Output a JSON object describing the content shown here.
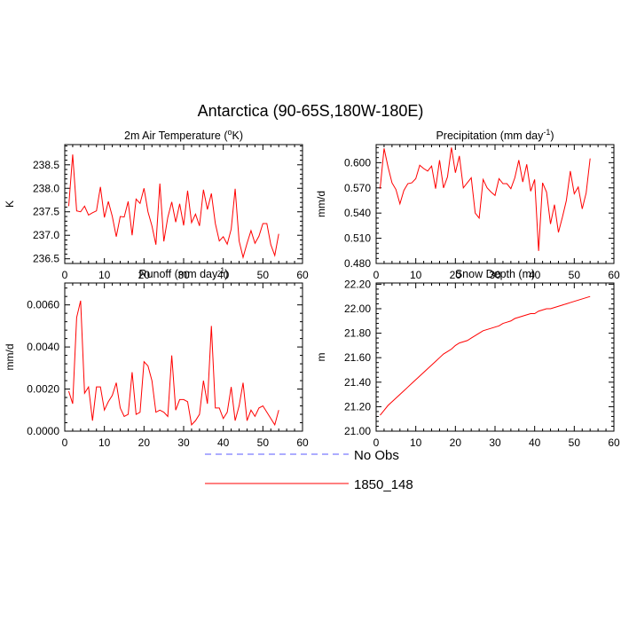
{
  "title": "Antarctica (90-65S,180W-180E)",
  "legend": {
    "items": [
      {
        "label": "No Obs",
        "color": "#5a5aff",
        "dashed": true
      },
      {
        "label": "1850_148",
        "color": "#ff0000",
        "dashed": false
      }
    ]
  },
  "chart_data": [
    {
      "type": "line",
      "title": "2m Air Temperature (°K)",
      "title_pre": "2m Air Temperature (",
      "title_sup": "o",
      "title_post": "K)",
      "ylabel": "K",
      "xlim": [
        0,
        60
      ],
      "ylim": [
        236.4,
        238.93
      ],
      "xticks": [
        "0",
        "10",
        "20",
        "30",
        "40",
        "50",
        "60"
      ],
      "yticks": [
        "236.5",
        "237.0",
        "237.5",
        "238.0",
        "238.5"
      ],
      "series": [
        {
          "color": "#ff0000",
          "x": [
            1,
            2,
            3,
            4,
            5,
            6,
            7,
            8,
            9,
            10,
            11,
            12,
            13,
            14,
            15,
            16,
            17,
            18,
            19,
            20,
            21,
            22,
            23,
            24,
            25,
            26,
            27,
            28,
            29,
            30,
            31,
            32,
            33,
            34,
            35,
            36,
            37,
            38,
            39,
            40,
            41,
            42,
            43,
            44,
            45,
            46,
            47,
            48,
            49,
            50,
            51,
            52,
            53,
            54
          ],
          "values": [
            237.62,
            238.72,
            237.52,
            237.5,
            237.62,
            237.43,
            237.48,
            237.52,
            238.03,
            237.38,
            237.72,
            237.4,
            236.97,
            237.4,
            237.39,
            237.72,
            237.0,
            237.77,
            237.68,
            238.0,
            237.5,
            237.2,
            236.8,
            238.1,
            236.87,
            237.38,
            237.71,
            237.28,
            237.67,
            237.21,
            237.95,
            237.27,
            237.45,
            237.2,
            237.97,
            237.55,
            237.89,
            237.25,
            236.88,
            236.97,
            236.81,
            237.13,
            237.99,
            236.88,
            236.53,
            236.83,
            237.1,
            236.83,
            236.98,
            237.25,
            237.25,
            236.8,
            236.57,
            237.03
          ]
        }
      ]
    },
    {
      "type": "line",
      "title": "Precipitation (mm day-1)",
      "title_pre": "Precipitation (mm day",
      "title_sup": "-1",
      "title_post": ")",
      "ylabel": "mm/d",
      "xlim": [
        0,
        60
      ],
      "ylim": [
        0.48,
        0.6215
      ],
      "xticks": [
        "0",
        "10",
        "20",
        "30",
        "40",
        "50",
        "60"
      ],
      "yticks": [
        "0.480",
        "0.510",
        "0.540",
        "0.570",
        "0.600"
      ],
      "series": [
        {
          "color": "#ff0000",
          "x": [
            1,
            2,
            3,
            4,
            5,
            6,
            7,
            8,
            9,
            10,
            11,
            12,
            13,
            14,
            15,
            16,
            17,
            18,
            19,
            20,
            21,
            22,
            23,
            24,
            25,
            26,
            27,
            28,
            29,
            30,
            31,
            32,
            33,
            34,
            35,
            36,
            37,
            38,
            39,
            40,
            41,
            42,
            43,
            44,
            45,
            46,
            47,
            48,
            49,
            50,
            51,
            52,
            53,
            54
          ],
          "values": [
            0.569,
            0.617,
            0.595,
            0.576,
            0.568,
            0.551,
            0.567,
            0.575,
            0.576,
            0.581,
            0.597,
            0.593,
            0.59,
            0.596,
            0.569,
            0.603,
            0.57,
            0.583,
            0.618,
            0.588,
            0.608,
            0.57,
            0.576,
            0.582,
            0.54,
            0.534,
            0.58,
            0.57,
            0.565,
            0.561,
            0.581,
            0.575,
            0.575,
            0.569,
            0.582,
            0.603,
            0.577,
            0.598,
            0.566,
            0.58,
            0.495,
            0.576,
            0.565,
            0.527,
            0.55,
            0.517,
            0.535,
            0.555,
            0.59,
            0.563,
            0.571,
            0.545,
            0.564,
            0.605
          ]
        }
      ]
    },
    {
      "type": "line",
      "title": "Runoff (mm day-1)",
      "title_pre": "Runoff (mm day",
      "title_sup": "-1",
      "title_post": ")",
      "ylabel": "mm/d",
      "xlim": [
        0,
        60
      ],
      "ylim": [
        0,
        0.00704
      ],
      "xticks": [
        "0",
        "10",
        "20",
        "30",
        "40",
        "50",
        "60"
      ],
      "yticks": [
        "0.0000",
        "0.0020",
        "0.0040",
        "0.0060"
      ],
      "series": [
        {
          "color": "#ff0000",
          "x": [
            1,
            2,
            3,
            4,
            5,
            6,
            7,
            8,
            9,
            10,
            11,
            12,
            13,
            14,
            15,
            16,
            17,
            18,
            19,
            20,
            21,
            22,
            23,
            24,
            25,
            26,
            27,
            28,
            29,
            30,
            31,
            32,
            33,
            34,
            35,
            36,
            37,
            38,
            39,
            40,
            41,
            42,
            43,
            44,
            45,
            46,
            47,
            48,
            49,
            50,
            51,
            52,
            53,
            54
          ],
          "values": [
            0.0019,
            0.0013,
            0.0054,
            0.0062,
            0.0018,
            0.0021,
            0.0005,
            0.0021,
            0.0021,
            0.001,
            0.0014,
            0.0017,
            0.0023,
            0.0011,
            0.0007,
            0.0008,
            0.0028,
            0.0008,
            0.0009,
            0.0033,
            0.0031,
            0.0024,
            0.0009,
            0.001,
            0.0009,
            0.0007,
            0.0036,
            0.001,
            0.0015,
            0.0015,
            0.0014,
            0.0003,
            0.0005,
            0.0008,
            0.0024,
            0.0013,
            0.005,
            0.0011,
            0.0011,
            0.0006,
            0.0009,
            0.0021,
            0.0005,
            0.0012,
            0.0023,
            0.0005,
            0.001,
            0.0007,
            0.0011,
            0.0012,
            0.0009,
            0.0006,
            0.0003,
            0.001
          ]
        }
      ]
    },
    {
      "type": "line",
      "title": "Snow Depth (m)",
      "title_pre": "Snow Depth (m)",
      "title_sup": "",
      "title_post": "",
      "ylabel": "m",
      "xlim": [
        0,
        60
      ],
      "ylim": [
        21.0,
        22.21
      ],
      "xticks": [
        "0",
        "10",
        "20",
        "30",
        "40",
        "50",
        "60"
      ],
      "yticks": [
        "21.00",
        "21.20",
        "21.40",
        "21.60",
        "21.80",
        "22.00",
        "22.20"
      ],
      "series": [
        {
          "color": "#ff0000",
          "x": [
            1,
            2,
            3,
            4,
            5,
            6,
            7,
            8,
            9,
            10,
            11,
            12,
            13,
            14,
            15,
            16,
            17,
            18,
            19,
            20,
            21,
            22,
            23,
            24,
            25,
            26,
            27,
            28,
            29,
            30,
            31,
            32,
            33,
            34,
            35,
            36,
            37,
            38,
            39,
            40,
            41,
            42,
            43,
            44,
            45,
            46,
            47,
            48,
            49,
            50,
            51,
            52,
            53,
            54
          ],
          "values": [
            21.13,
            21.17,
            21.21,
            21.24,
            21.27,
            21.3,
            21.33,
            21.36,
            21.39,
            21.42,
            21.45,
            21.48,
            21.51,
            21.54,
            21.57,
            21.6,
            21.63,
            21.65,
            21.67,
            21.7,
            21.72,
            21.73,
            21.74,
            21.76,
            21.78,
            21.8,
            21.82,
            21.83,
            21.84,
            21.85,
            21.86,
            21.88,
            21.89,
            21.9,
            21.92,
            21.93,
            21.94,
            21.95,
            21.96,
            21.96,
            21.98,
            21.99,
            22.0,
            22.0,
            22.01,
            22.02,
            22.03,
            22.04,
            22.05,
            22.06,
            22.07,
            22.08,
            22.09,
            22.1
          ]
        }
      ]
    }
  ]
}
